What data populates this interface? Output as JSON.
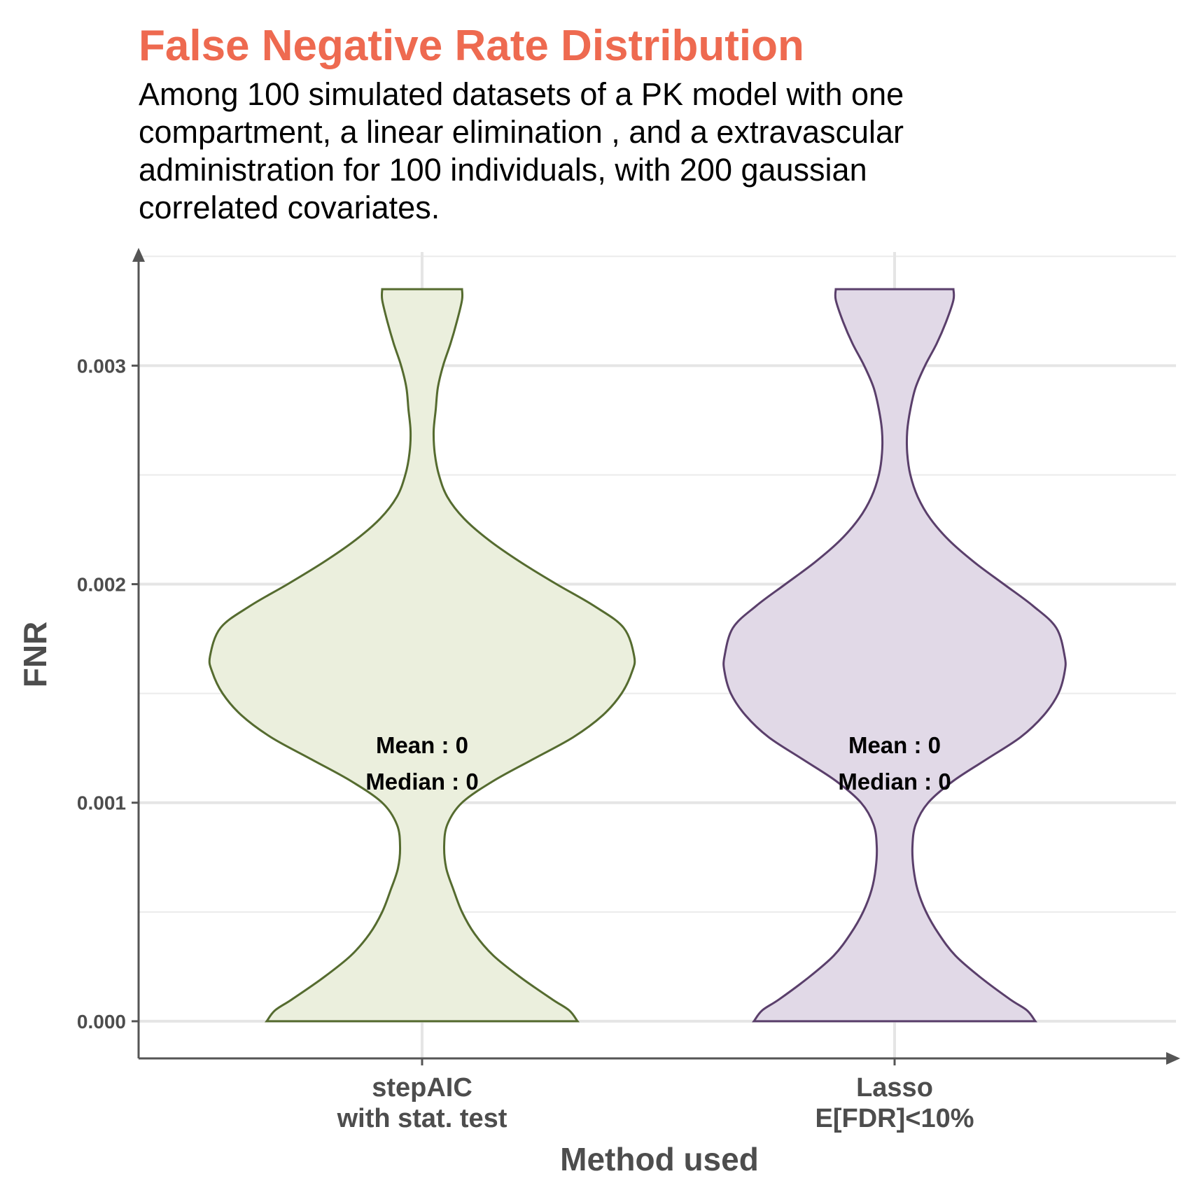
{
  "chart_data": {
    "type": "violin",
    "title": "False Negative Rate Distribution",
    "subtitle": [
      "Among 100 simulated datasets of a PK model with one",
      "compartment, a linear elimination , and a extravascular",
      "administration for 100 individuals, with 200 gaussian",
      "correlated covariates."
    ],
    "xlabel": "Method used",
    "ylabel": "FNR",
    "ylim": [
      -0.00017,
      0.00352
    ],
    "y_ticks": [
      "0.000",
      "0.001",
      "0.002",
      "0.003"
    ],
    "y_tick_values": [
      0,
      0.001,
      0.002,
      0.003
    ],
    "grid": true,
    "series": [
      {
        "category": [
          "stepAIC",
          "with stat. test"
        ],
        "fill": "#EBEFDD",
        "stroke": "#556B2F",
        "stats": [
          "Mean : 0",
          "Median : 0"
        ],
        "density_profile": [
          [
            0,
            0.74
          ],
          [
            5e-05,
            0.7
          ],
          [
            0.0001,
            0.62
          ],
          [
            0.0002,
            0.47
          ],
          [
            0.0003,
            0.34
          ],
          [
            0.0004,
            0.25
          ],
          [
            0.0005,
            0.19
          ],
          [
            0.0006,
            0.15
          ],
          [
            0.0007,
            0.115
          ],
          [
            0.0008,
            0.105
          ],
          [
            0.0009,
            0.12
          ],
          [
            0.001,
            0.19
          ],
          [
            0.0011,
            0.34
          ],
          [
            0.0012,
            0.53
          ],
          [
            0.0013,
            0.72
          ],
          [
            0.0014,
            0.86
          ],
          [
            0.0015,
            0.95
          ],
          [
            0.0016,
            1.0
          ],
          [
            0.00167,
            1.01
          ],
          [
            0.0018,
            0.96
          ],
          [
            0.0019,
            0.82
          ],
          [
            0.002,
            0.64
          ],
          [
            0.0021,
            0.47
          ],
          [
            0.0022,
            0.32
          ],
          [
            0.0023,
            0.2
          ],
          [
            0.0024,
            0.12
          ],
          [
            0.0025,
            0.08
          ],
          [
            0.0026,
            0.06
          ],
          [
            0.0027,
            0.055
          ],
          [
            0.0028,
            0.065
          ],
          [
            0.0029,
            0.075
          ],
          [
            0.003,
            0.1
          ],
          [
            0.0031,
            0.135
          ],
          [
            0.0032,
            0.165
          ],
          [
            0.0033,
            0.19
          ],
          [
            0.00335,
            0.19
          ]
        ]
      },
      {
        "category": [
          "Lasso",
          "E[FDR]<10%"
        ],
        "fill": "#E1D9E7",
        "stroke": "#5A3F6B",
        "stats": [
          "Mean : 0",
          "Median : 0"
        ],
        "density_profile": [
          [
            0,
            0.67
          ],
          [
            5e-05,
            0.63
          ],
          [
            0.0001,
            0.55
          ],
          [
            0.0002,
            0.41
          ],
          [
            0.0003,
            0.29
          ],
          [
            0.0004,
            0.21
          ],
          [
            0.0005,
            0.15
          ],
          [
            0.0006,
            0.11
          ],
          [
            0.0007,
            0.09
          ],
          [
            0.0008,
            0.085
          ],
          [
            0.0009,
            0.1
          ],
          [
            0.001,
            0.16
          ],
          [
            0.0011,
            0.28
          ],
          [
            0.0012,
            0.44
          ],
          [
            0.0013,
            0.6
          ],
          [
            0.0014,
            0.71
          ],
          [
            0.0015,
            0.78
          ],
          [
            0.0016,
            0.81
          ],
          [
            0.00167,
            0.81
          ],
          [
            0.0018,
            0.77
          ],
          [
            0.0019,
            0.66
          ],
          [
            0.002,
            0.52
          ],
          [
            0.0021,
            0.38
          ],
          [
            0.0022,
            0.26
          ],
          [
            0.0023,
            0.17
          ],
          [
            0.0024,
            0.11
          ],
          [
            0.0025,
            0.075
          ],
          [
            0.0026,
            0.06
          ],
          [
            0.0027,
            0.06
          ],
          [
            0.0028,
            0.075
          ],
          [
            0.0029,
            0.1
          ],
          [
            0.003,
            0.145
          ],
          [
            0.0031,
            0.2
          ],
          [
            0.0032,
            0.245
          ],
          [
            0.0033,
            0.28
          ],
          [
            0.00335,
            0.28
          ]
        ]
      }
    ]
  }
}
